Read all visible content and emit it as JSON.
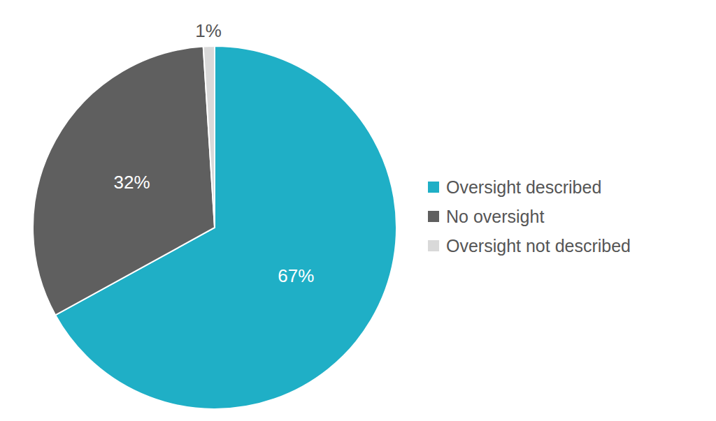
{
  "chart_data": {
    "type": "pie",
    "categories": [
      "Oversight described",
      "No oversight",
      "Oversight not described"
    ],
    "values": [
      67,
      32,
      1
    ],
    "value_labels": [
      "67%",
      "32%",
      "1%"
    ],
    "colors": [
      "#1fafc6",
      "#5f5f5f",
      "#d9d9d9"
    ],
    "data_labels": true,
    "legend": "right"
  }
}
